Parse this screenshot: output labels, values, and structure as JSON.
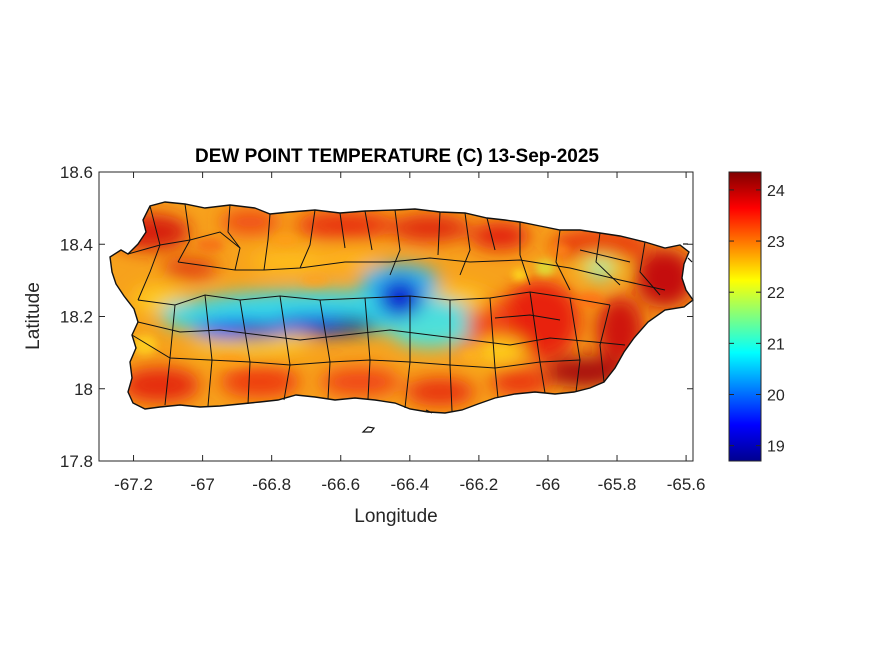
{
  "figure": {
    "title": "DEW POINT TEMPERATURE (C) 13-Sep-2025",
    "xlabel": "Longitude",
    "ylabel": "Latitude"
  },
  "chart_data": {
    "type": "heatmap",
    "title": "DEW POINT TEMPERATURE (C) 13-Sep-2025",
    "xlabel": "Longitude",
    "ylabel": "Latitude",
    "xlim": [
      -67.3,
      -65.58
    ],
    "ylim": [
      17.8,
      18.6
    ],
    "x_ticks": [
      -67.2,
      -67,
      -66.8,
      -66.6,
      -66.4,
      -66.2,
      -66,
      -65.8,
      -65.6
    ],
    "x_tick_labels": [
      "-67.2",
      "-67",
      "-66.8",
      "-66.6",
      "-66.4",
      "-66.2",
      "-66",
      "-65.8",
      "-65.6"
    ],
    "y_ticks": [
      17.8,
      18,
      18.2,
      18.4,
      18.6
    ],
    "y_tick_labels": [
      "17.8",
      "18",
      "18.2",
      "18.4",
      "18.6"
    ],
    "colorbar": {
      "colormap": "jet",
      "range": [
        18.7,
        24.35
      ],
      "ticks": [
        19,
        20,
        21,
        22,
        23,
        24
      ],
      "tick_labels": [
        "19",
        "20",
        "21",
        "22",
        "23",
        "24"
      ]
    },
    "grid": false
  }
}
